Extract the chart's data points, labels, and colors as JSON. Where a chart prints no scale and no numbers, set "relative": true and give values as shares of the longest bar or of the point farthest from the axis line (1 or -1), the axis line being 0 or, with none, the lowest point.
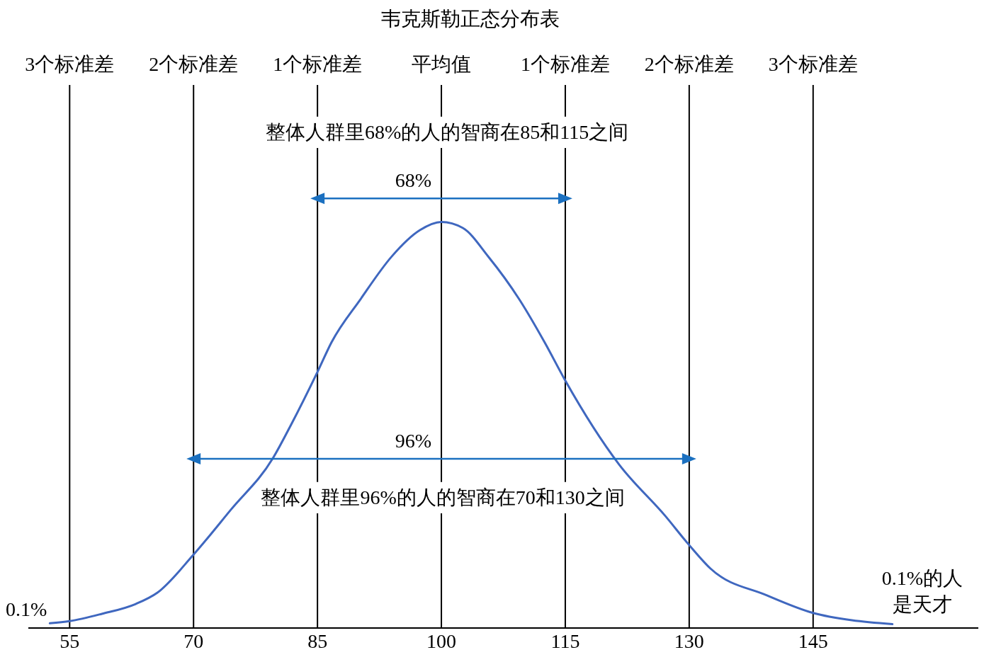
{
  "chart_data": {
    "type": "line",
    "title": "韦克斯勒正态分布表",
    "relative": true,
    "series": [
      {
        "color": "#3f67bf",
        "x": [
          52.6,
          55,
          58.9,
          63.0,
          65.6,
          70,
          74.5,
          79.6,
          81.8,
          85,
          86.7,
          90.2,
          94.0,
          97.4,
          100,
          102.6,
          105.7,
          109.4,
          112.5,
          115,
          121.5,
          127.1,
          130,
          132.6,
          139.4,
          145,
          149.7,
          154.6
        ],
        "values": [
          0.011,
          0.016,
          0.033,
          0.056,
          0.082,
          0.171,
          0.275,
          0.395,
          0.473,
          0.596,
          0.665,
          0.765,
          0.865,
          0.926,
          0.945,
          0.931,
          0.864,
          0.766,
          0.665,
          0.576,
          0.381,
          0.261,
          0.193,
          0.138,
          0.076,
          0.035,
          0.018,
          0.009
        ]
      },
      {
        "name": "68%",
        "color": "#1b70c0",
        "marker": "triangle",
        "x": [
          85,
          115
        ],
        "values": [
          1,
          1
        ]
      },
      {
        "name": "96%",
        "color": "#1b70c0",
        "marker": "triangle",
        "x": [
          70,
          130
        ],
        "values": [
          0.394,
          0.394
        ]
      }
    ],
    "xlim": [
      50,
      165
    ],
    "xticks": [
      55,
      70,
      85,
      100,
      115,
      130,
      145
    ],
    "ref_lines": [
      {
        "axis": "x",
        "value": 55,
        "label": "3个标准差"
      },
      {
        "axis": "x",
        "value": 70,
        "label": "2个标准差"
      },
      {
        "axis": "x",
        "value": 85,
        "label": "1个标准差"
      },
      {
        "axis": "x",
        "value": 100,
        "label": "平均值"
      },
      {
        "axis": "x",
        "value": 115,
        "label": "1个标准差"
      },
      {
        "axis": "x",
        "value": 130,
        "label": "2个标准差"
      },
      {
        "axis": "x",
        "value": 145,
        "label": "3个标准差"
      }
    ],
    "annotations": [
      "整体人群里68%的人的智商在85和115之间",
      "整体人群里96%的人的智商在70和130之间",
      "0.1%",
      "0.1%的人是天才"
    ]
  }
}
